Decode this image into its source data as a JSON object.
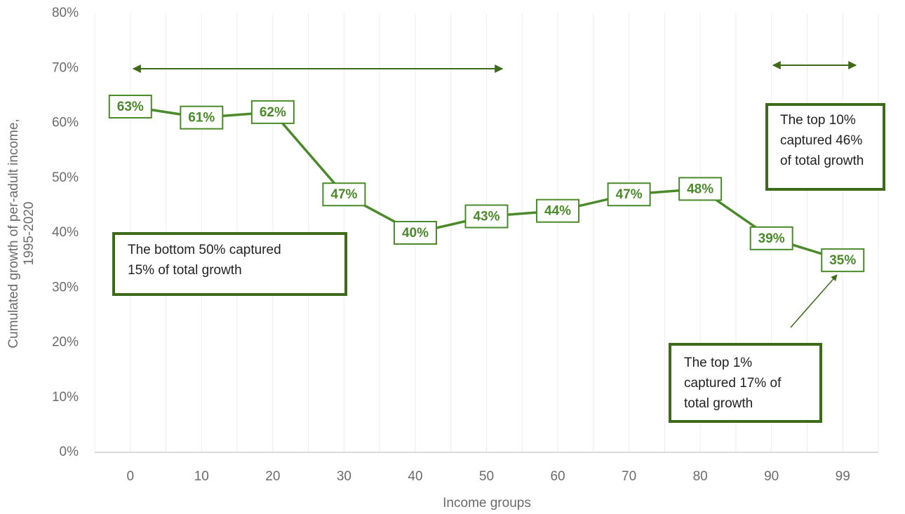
{
  "chart_data": {
    "type": "line",
    "categories": [
      "0",
      "10",
      "20",
      "30",
      "40",
      "50",
      "60",
      "70",
      "80",
      "90",
      "99"
    ],
    "values": [
      63,
      61,
      62,
      47,
      40,
      43,
      44,
      47,
      48,
      39,
      35
    ],
    "value_labels": [
      "63%",
      "61%",
      "62%",
      "47%",
      "40%",
      "43%",
      "44%",
      "47%",
      "48%",
      "39%",
      "35%"
    ],
    "color": "#4a8a2a",
    "xlabel": "Income groups",
    "ylabel": [
      "Cumulated growth of per-adult income,",
      "1995-2020"
    ],
    "ylim": [
      0,
      80
    ],
    "yticks": [
      {
        "value": 0,
        "label": "0%"
      },
      {
        "value": 10,
        "label": "10%"
      },
      {
        "value": 20,
        "label": "20%"
      },
      {
        "value": 30,
        "label": "30%"
      },
      {
        "value": 40,
        "label": "40%"
      },
      {
        "value": 50,
        "label": "50%"
      },
      {
        "value": 60,
        "label": "60%"
      },
      {
        "value": 70,
        "label": "70%"
      },
      {
        "value": 80,
        "label": "80%"
      }
    ],
    "grid": true,
    "annotations": [
      [
        "The bottom 50% captured",
        "15% of total growth"
      ],
      [
        "The top 10%",
        "captured 46%",
        "of total growth"
      ],
      [
        "The top 1%",
        "captured 17% of",
        "total growth"
      ]
    ]
  }
}
